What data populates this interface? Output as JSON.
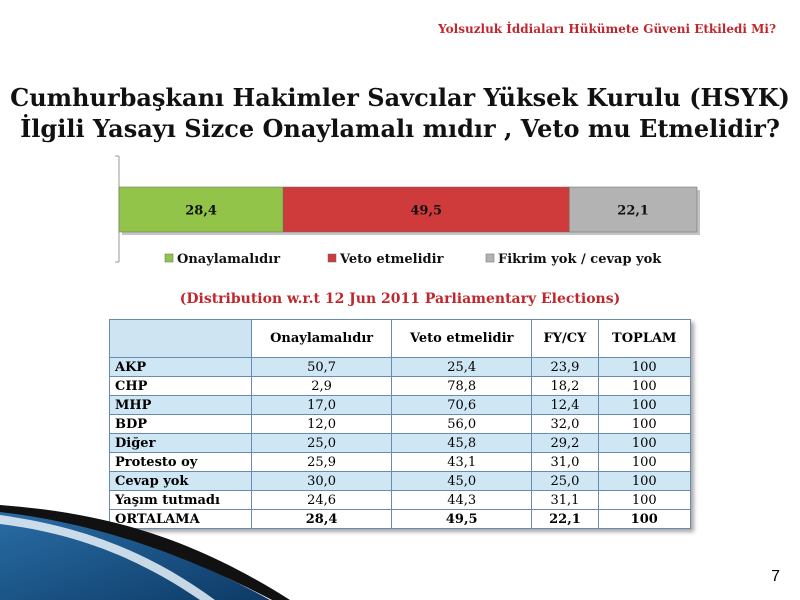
{
  "header": {
    "title": "Yolsuzluk İddiaları Hükümete Güveni Etkiledi Mi?"
  },
  "main_title": {
    "line1": "Cumhurbaşkanı Hakimler Savcılar Yüksek Kurulu (HSYK)",
    "line2": "İlgili Yasayı Sizce Onaylamalı mıdır , Veto mu Etmelidir?"
  },
  "subtitle": "(Distribution w.r.t 12 Jun 2011 Parliamentary Elections)",
  "page_number": "7",
  "colors": {
    "green": "#92c44a",
    "red": "#cf3b3b",
    "gray": "#b3b3b3",
    "accent_red": "#c0272d",
    "row_alt": "#cfe7f4"
  },
  "chart_data": {
    "type": "bar",
    "stacked": true,
    "orientation": "horizontal",
    "title": "",
    "xlabel": "",
    "ylabel": "",
    "xlim": [
      0,
      100
    ],
    "legend_position": "bottom",
    "series": [
      {
        "name": "Onaylamalıdır",
        "values": [
          28.4
        ],
        "label": "28,4",
        "color": "#92c44a"
      },
      {
        "name": "Veto etmelidir",
        "values": [
          49.5
        ],
        "label": "49,5",
        "color": "#cf3b3b"
      },
      {
        "name": "Fikrim yok / cevap yok",
        "values": [
          22.1
        ],
        "label": "22,1",
        "color": "#b3b3b3"
      }
    ]
  },
  "table": {
    "headers": [
      "",
      "Onaylamalıdır",
      "Veto etmelidir",
      "FY/CY",
      "TOPLAM"
    ],
    "rows": [
      {
        "party": "AKP",
        "values": [
          "50,7",
          "25,4",
          "23,9",
          "100"
        ]
      },
      {
        "party": "CHP",
        "values": [
          "2,9",
          "78,8",
          "18,2",
          "100"
        ]
      },
      {
        "party": "MHP",
        "values": [
          "17,0",
          "70,6",
          "12,4",
          "100"
        ]
      },
      {
        "party": "BDP",
        "values": [
          "12,0",
          "56,0",
          "32,0",
          "100"
        ]
      },
      {
        "party": "Diğer",
        "values": [
          "25,0",
          "45,8",
          "29,2",
          "100"
        ]
      },
      {
        "party": "Protesto oy",
        "values": [
          "25,9",
          "43,1",
          "31,0",
          "100"
        ]
      },
      {
        "party": "Cevap yok",
        "values": [
          "30,0",
          "45,0",
          "25,0",
          "100"
        ]
      },
      {
        "party": "Yaşım tutmadı",
        "values": [
          "24,6",
          "44,3",
          "31,1",
          "100"
        ]
      },
      {
        "party": "ORTALAMA",
        "values": [
          "28,4",
          "49,5",
          "22,1",
          "100"
        ]
      }
    ]
  }
}
